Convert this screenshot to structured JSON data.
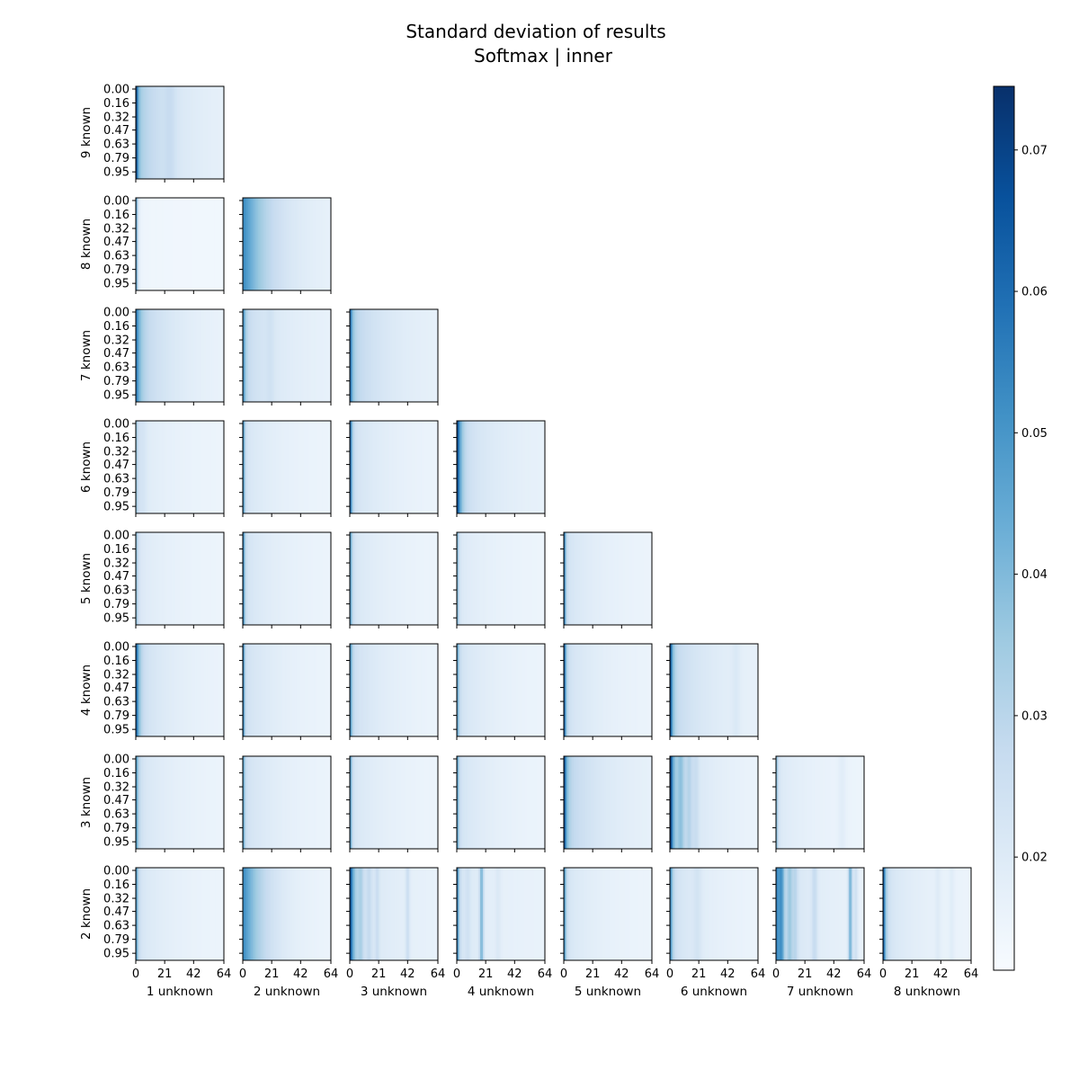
{
  "chart_data": {
    "type": "heatmap",
    "title": "Standard deviation of results",
    "subtitle": "Softmax | inner",
    "colormap": "Blues",
    "colorbar": {
      "range": [
        0.012,
        0.0745
      ],
      "ticks": [
        "0.02",
        "0.03",
        "0.04",
        "0.05",
        "0.06",
        "0.07"
      ],
      "tick_values": [
        0.02,
        0.03,
        0.04,
        0.05,
        0.06,
        0.07
      ]
    },
    "x_range": [
      0,
      64
    ],
    "x_ticks": [
      "0",
      "21",
      "42",
      "64"
    ],
    "x_tick_values": [
      0,
      21,
      42,
      64
    ],
    "y_range": [
      0,
      1
    ],
    "y_ticks": [
      "0.00",
      "0.16",
      "0.32",
      "0.47",
      "0.63",
      "0.79",
      "0.95"
    ],
    "y_tick_values": [
      0.0,
      0.16,
      0.32,
      0.47,
      0.63,
      0.79,
      0.95
    ],
    "row_labels": [
      "9 known",
      "8 known",
      "7 known",
      "6 known",
      "5 known",
      "4 known",
      "3 known",
      "2 known"
    ],
    "col_labels": [
      "1 unknown",
      "2 unknown",
      "3 unknown",
      "4 unknown",
      "5 unknown",
      "6 unknown",
      "7 unknown",
      "8 unknown"
    ],
    "panels": [
      {
        "row": "9 known",
        "col": "1 unknown",
        "profile": {
          "peak": 0.07,
          "base": 0.016,
          "decay": 1.2,
          "mid": 0.019,
          "stripes": [
            [
              25,
              0.004,
              4
            ]
          ]
        }
      },
      {
        "row": "8 known",
        "col": "1 unknown",
        "profile": {
          "peak": 0.066,
          "base": 0.014,
          "decay": 1.0,
          "mid": 0.001,
          "stripes": []
        }
      },
      {
        "row": "8 known",
        "col": "2 unknown",
        "profile": {
          "peak": 0.052,
          "base": 0.016,
          "decay": 18,
          "mid": 0.002,
          "stripes": []
        }
      },
      {
        "row": "7 known",
        "col": "1 unknown",
        "profile": {
          "peak": 0.045,
          "base": 0.015,
          "decay": 2.5,
          "mid": 0.018,
          "stripes": []
        }
      },
      {
        "row": "7 known",
        "col": "2 unknown",
        "profile": {
          "peak": 0.05,
          "base": 0.016,
          "decay": 1.5,
          "mid": 0.012,
          "stripes": [
            [
              20,
              0.003,
              3
            ]
          ]
        }
      },
      {
        "row": "7 known",
        "col": "3 unknown",
        "profile": {
          "peak": 0.055,
          "base": 0.016,
          "decay": 1.5,
          "mid": 0.016,
          "stripes": []
        }
      },
      {
        "row": "6 known",
        "col": "1 unknown",
        "profile": {
          "peak": 0.04,
          "base": 0.015,
          "decay": 1.0,
          "mid": 0.006,
          "stripes": [
            [
              5,
              0.003,
              3
            ]
          ]
        }
      },
      {
        "row": "6 known",
        "col": "2 unknown",
        "profile": {
          "peak": 0.062,
          "base": 0.015,
          "decay": 1.0,
          "mid": 0.008,
          "stripes": []
        }
      },
      {
        "row": "6 known",
        "col": "3 unknown",
        "profile": {
          "peak": 0.072,
          "base": 0.015,
          "decay": 1.2,
          "mid": 0.01,
          "stripes": []
        }
      },
      {
        "row": "6 known",
        "col": "4 unknown",
        "profile": {
          "peak": 0.068,
          "base": 0.016,
          "decay": 2.5,
          "mid": 0.012,
          "stripes": []
        }
      },
      {
        "row": "5 known",
        "col": "1 unknown",
        "profile": {
          "peak": 0.04,
          "base": 0.015,
          "decay": 1.2,
          "mid": 0.006,
          "stripes": []
        }
      },
      {
        "row": "5 known",
        "col": "2 unknown",
        "profile": {
          "peak": 0.065,
          "base": 0.015,
          "decay": 1.0,
          "mid": 0.009,
          "stripes": []
        }
      },
      {
        "row": "5 known",
        "col": "3 unknown",
        "profile": {
          "peak": 0.055,
          "base": 0.015,
          "decay": 1.2,
          "mid": 0.008,
          "stripes": []
        }
      },
      {
        "row": "5 known",
        "col": "4 unknown",
        "profile": {
          "peak": 0.048,
          "base": 0.015,
          "decay": 1.0,
          "mid": 0.006,
          "stripes": []
        }
      },
      {
        "row": "5 known",
        "col": "5 unknown",
        "profile": {
          "peak": 0.07,
          "base": 0.015,
          "decay": 1.0,
          "mid": 0.009,
          "stripes": []
        }
      },
      {
        "row": "4 known",
        "col": "1 unknown",
        "profile": {
          "peak": 0.062,
          "base": 0.015,
          "decay": 2.0,
          "mid": 0.012,
          "stripes": []
        }
      },
      {
        "row": "4 known",
        "col": "2 unknown",
        "profile": {
          "peak": 0.072,
          "base": 0.015,
          "decay": 0.8,
          "mid": 0.01,
          "stripes": []
        }
      },
      {
        "row": "4 known",
        "col": "3 unknown",
        "profile": {
          "peak": 0.055,
          "base": 0.015,
          "decay": 1.2,
          "mid": 0.011,
          "stripes": []
        }
      },
      {
        "row": "4 known",
        "col": "4 unknown",
        "profile": {
          "peak": 0.05,
          "base": 0.015,
          "decay": 1.2,
          "mid": 0.009,
          "stripes": []
        }
      },
      {
        "row": "4 known",
        "col": "5 unknown",
        "profile": {
          "peak": 0.074,
          "base": 0.015,
          "decay": 1.2,
          "mid": 0.01,
          "stripes": []
        }
      },
      {
        "row": "4 known",
        "col": "6 unknown",
        "profile": {
          "peak": 0.07,
          "base": 0.016,
          "decay": 1.5,
          "mid": 0.014,
          "stripes": [
            [
              48,
              0.003,
              3
            ]
          ]
        }
      },
      {
        "row": "3 known",
        "col": "1 unknown",
        "profile": {
          "peak": 0.05,
          "base": 0.015,
          "decay": 1.5,
          "mid": 0.009,
          "stripes": []
        }
      },
      {
        "row": "3 known",
        "col": "2 unknown",
        "profile": {
          "peak": 0.052,
          "base": 0.015,
          "decay": 1.0,
          "mid": 0.01,
          "stripes": []
        }
      },
      {
        "row": "3 known",
        "col": "3 unknown",
        "profile": {
          "peak": 0.06,
          "base": 0.015,
          "decay": 1.0,
          "mid": 0.008,
          "stripes": []
        }
      },
      {
        "row": "3 known",
        "col": "4 unknown",
        "profile": {
          "peak": 0.055,
          "base": 0.015,
          "decay": 1.0,
          "mid": 0.009,
          "stripes": []
        }
      },
      {
        "row": "3 known",
        "col": "5 unknown",
        "profile": {
          "peak": 0.068,
          "base": 0.016,
          "decay": 1.5,
          "mid": 0.016,
          "stripes": []
        }
      },
      {
        "row": "3 known",
        "col": "6 unknown",
        "profile": {
          "peak": 0.074,
          "base": 0.015,
          "decay": 2.0,
          "mid": 0.014,
          "stripes": [
            [
              8,
              0.012,
              2.5
            ],
            [
              14,
              0.008,
              2.5
            ],
            [
              19,
              0.005,
              2
            ]
          ]
        }
      },
      {
        "row": "3 known",
        "col": "7 unknown",
        "profile": {
          "peak": 0.045,
          "base": 0.015,
          "decay": 1.0,
          "mid": 0.006,
          "stripes": [
            [
              48,
              0.003,
              3
            ]
          ]
        }
      },
      {
        "row": "2 known",
        "col": "1 unknown",
        "profile": {
          "peak": 0.055,
          "base": 0.015,
          "decay": 1.2,
          "mid": 0.008,
          "stripes": []
        }
      },
      {
        "row": "2 known",
        "col": "2 unknown",
        "profile": {
          "peak": 0.05,
          "base": 0.015,
          "decay": 14,
          "mid": 0.004,
          "stripes": []
        }
      },
      {
        "row": "2 known",
        "col": "3 unknown",
        "profile": {
          "peak": 0.068,
          "base": 0.016,
          "decay": 2.5,
          "mid": 0.01,
          "stripes": [
            [
              8,
              0.008,
              2
            ],
            [
              14,
              0.006,
              2
            ],
            [
              20,
              0.006,
              1.5
            ],
            [
              42,
              0.008,
              1.5
            ]
          ]
        }
      },
      {
        "row": "2 known",
        "col": "4 unknown",
        "profile": {
          "peak": 0.068,
          "base": 0.016,
          "decay": 1.2,
          "mid": 0.006,
          "stripes": [
            [
              18,
              0.022,
              1.5
            ],
            [
              8,
              0.004,
              2
            ],
            [
              30,
              0.003,
              2
            ]
          ]
        }
      },
      {
        "row": "2 known",
        "col": "5 unknown",
        "profile": {
          "peak": 0.06,
          "base": 0.015,
          "decay": 1.2,
          "mid": 0.008,
          "stripes": []
        }
      },
      {
        "row": "2 known",
        "col": "6 unknown",
        "profile": {
          "peak": 0.055,
          "base": 0.015,
          "decay": 1.5,
          "mid": 0.01,
          "stripes": [
            [
              20,
              0.004,
              3
            ]
          ]
        }
      },
      {
        "row": "2 known",
        "col": "7 unknown",
        "profile": {
          "peak": 0.05,
          "base": 0.016,
          "decay": 3.0,
          "mid": 0.01,
          "stripes": [
            [
              4,
              0.018,
              2
            ],
            [
              10,
              0.012,
              2
            ],
            [
              14,
              0.008,
              2
            ],
            [
              28,
              0.008,
              2
            ],
            [
              54,
              0.025,
              1.5
            ],
            [
              58,
              0.008,
              1.5
            ]
          ]
        }
      },
      {
        "row": "2 known",
        "col": "8 unknown",
        "profile": {
          "peak": 0.072,
          "base": 0.015,
          "decay": 1.5,
          "mid": 0.009,
          "stripes": [
            [
              40,
              0.003,
              2
            ],
            [
              50,
              0.003,
              2
            ]
          ]
        }
      }
    ]
  }
}
